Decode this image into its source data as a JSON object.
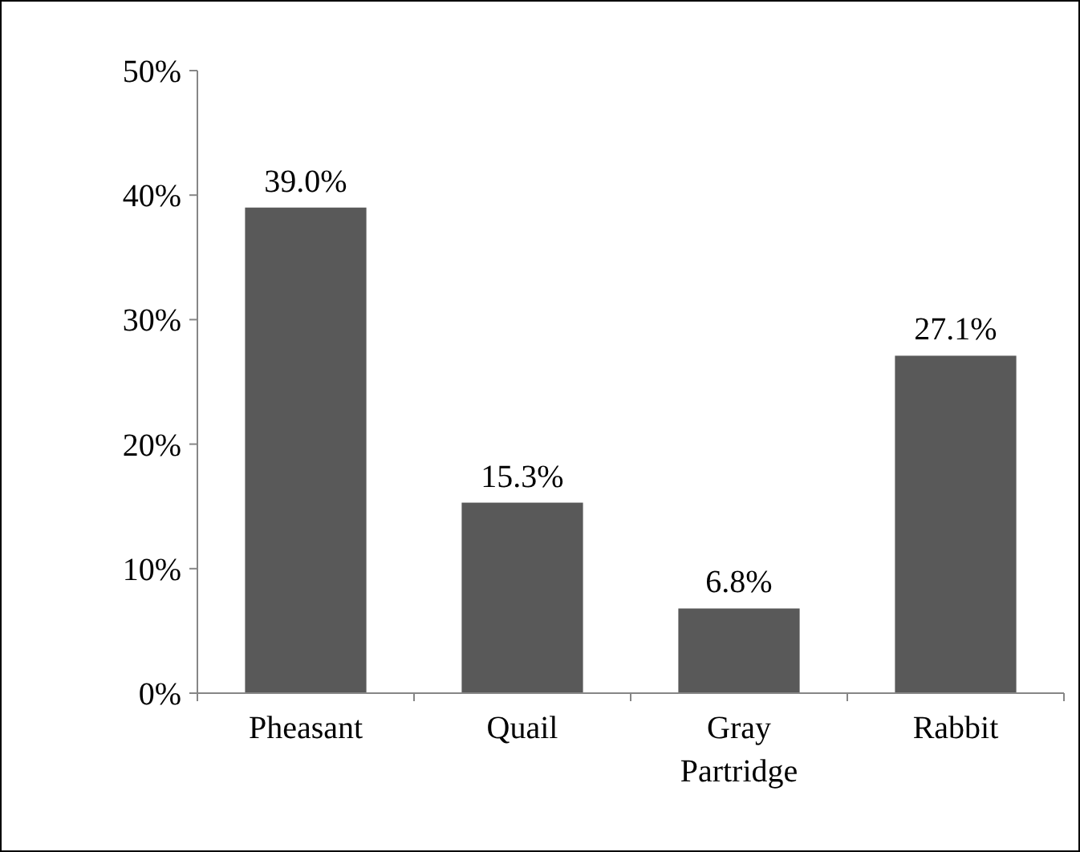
{
  "chart_data": {
    "type": "bar",
    "categories": [
      "Pheasant",
      "Quail",
      "Gray Partridge",
      "Rabbit"
    ],
    "values": [
      39.0,
      15.3,
      6.8,
      27.1
    ],
    "value_labels": [
      "39.0%",
      "15.3%",
      "6.8%",
      "27.1%"
    ],
    "color": "#595959",
    "ylim": [
      0,
      50
    ],
    "yticks": [
      {
        "value": 0,
        "label": "0%"
      },
      {
        "value": 10,
        "label": "10%"
      },
      {
        "value": 20,
        "label": "20%"
      },
      {
        "value": 30,
        "label": "30%"
      },
      {
        "value": 40,
        "label": "40%"
      },
      {
        "value": 50,
        "label": "50%"
      }
    ],
    "grid": false
  }
}
